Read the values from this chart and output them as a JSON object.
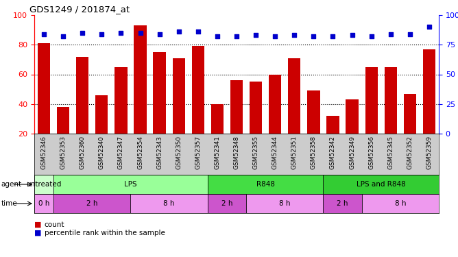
{
  "title": "GDS1249 / 201874_at",
  "samples": [
    "GSM52346",
    "GSM52353",
    "GSM52360",
    "GSM52340",
    "GSM52347",
    "GSM52354",
    "GSM52343",
    "GSM52350",
    "GSM52357",
    "GSM52341",
    "GSM52348",
    "GSM52355",
    "GSM52344",
    "GSM52351",
    "GSM52358",
    "GSM52342",
    "GSM52349",
    "GSM52356",
    "GSM52345",
    "GSM52352",
    "GSM52359"
  ],
  "counts": [
    81,
    38,
    72,
    46,
    65,
    93,
    75,
    71,
    79,
    40,
    56,
    55,
    60,
    71,
    49,
    32,
    43,
    65,
    65,
    47,
    77
  ],
  "percentiles": [
    84,
    82,
    85,
    84,
    85,
    85,
    84,
    86,
    86,
    82,
    82,
    83,
    82,
    83,
    82,
    82,
    83,
    82,
    84,
    84,
    90
  ],
  "bar_color": "#cc0000",
  "dot_color": "#0000cc",
  "ylim_left": [
    20,
    100
  ],
  "ylim_right": [
    0,
    100
  ],
  "yticks_left": [
    20,
    40,
    60,
    80,
    100
  ],
  "yticks_right": [
    0,
    25,
    50,
    75,
    100
  ],
  "yticklabels_right": [
    "0",
    "25",
    "50",
    "75",
    "100%"
  ],
  "grid_lines": [
    40,
    60,
    80
  ],
  "agent_groups": [
    {
      "label": "untreated",
      "start": 0,
      "end": 1,
      "color": "#ccffcc"
    },
    {
      "label": "LPS",
      "start": 1,
      "end": 9,
      "color": "#99ff99"
    },
    {
      "label": "R848",
      "start": 9,
      "end": 15,
      "color": "#44dd44"
    },
    {
      "label": "LPS and R848",
      "start": 15,
      "end": 21,
      "color": "#33cc33"
    }
  ],
  "time_groups": [
    {
      "label": "0 h",
      "start": 0,
      "end": 1,
      "color": "#ee99ee"
    },
    {
      "label": "2 h",
      "start": 1,
      "end": 5,
      "color": "#cc55cc"
    },
    {
      "label": "8 h",
      "start": 5,
      "end": 9,
      "color": "#ee99ee"
    },
    {
      "label": "2 h",
      "start": 9,
      "end": 11,
      "color": "#cc55cc"
    },
    {
      "label": "8 h",
      "start": 11,
      "end": 15,
      "color": "#ee99ee"
    },
    {
      "label": "2 h",
      "start": 15,
      "end": 17,
      "color": "#cc55cc"
    },
    {
      "label": "8 h",
      "start": 17,
      "end": 21,
      "color": "#ee99ee"
    }
  ],
  "legend_count_label": "count",
  "legend_pct_label": "percentile rank within the sample",
  "agent_label": "agent",
  "time_label": "time",
  "label_bg_color": "#cccccc"
}
